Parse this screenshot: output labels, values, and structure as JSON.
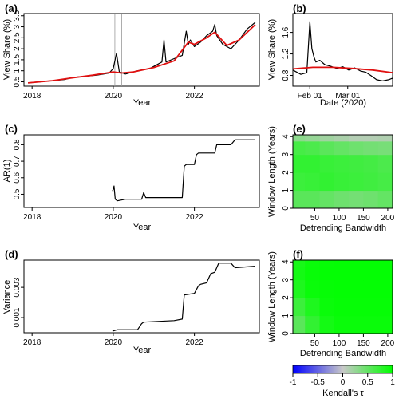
{
  "colors": {
    "data_line": "#000000",
    "trend_line": "#e01010",
    "heat_low": "#0000ff",
    "heat_mid": "#c8c8c8",
    "heat_high": "#00ff00"
  },
  "panels": {
    "a": {
      "label": "(a)",
      "ylabel": "View Share (%)",
      "xlabel": "Year",
      "xticks": [
        "2018",
        "2020",
        "2022"
      ],
      "yticks": [
        "0.5",
        "1",
        "1.5",
        "2",
        "2.5",
        "3",
        "3.5"
      ]
    },
    "b": {
      "label": "(b)",
      "ylabel": "View Share (%)",
      "xlabel": "Date (2020)",
      "xticks": [
        "Feb 01",
        "Mar 01"
      ],
      "yticks": [
        "0.8",
        "1.2",
        "1.6"
      ]
    },
    "c": {
      "label": "(c)",
      "ylabel": "AR(1)",
      "xlabel": "Year",
      "xticks": [
        "2018",
        "2020",
        "2022"
      ],
      "yticks": [
        "0.5",
        "0.6",
        "0.7",
        "0.8"
      ]
    },
    "d": {
      "label": "(d)",
      "ylabel": "Variance",
      "xlabel": "Year",
      "xticks": [
        "2018",
        "2020",
        "2022"
      ],
      "yticks": [
        "0.001",
        "0.003"
      ]
    },
    "e": {
      "label": "(e)",
      "ylabel": "Window Length (Years)",
      "xlabel": "Detrending Bandwidth",
      "xticks": [
        "50",
        "100",
        "150",
        "200"
      ],
      "yticks": [
        "0",
        "1",
        "2",
        "3",
        "4"
      ]
    },
    "f": {
      "label": "(f)",
      "ylabel": "Window Length (Years)",
      "xlabel": "Detrending Bandwidth",
      "xticks": [
        "50",
        "100",
        "150",
        "200"
      ],
      "yticks": [
        "0",
        "1",
        "2",
        "3",
        "4"
      ]
    }
  },
  "colorbar": {
    "label": "Kendall's τ",
    "ticks": [
      "-1",
      "-0.5",
      "0",
      "0.5",
      "1"
    ]
  },
  "chart_data": [
    {
      "panel": "a",
      "type": "line",
      "xlim": [
        2017.8,
        2023.6
      ],
      "ylim": [
        0.3,
        3.6
      ],
      "highlight_x": [
        2020.04,
        2020.21
      ],
      "series": [
        {
          "role": "data",
          "x": [
            2017.9,
            2018.2,
            2018.5,
            2018.8,
            2019.0,
            2019.3,
            2019.6,
            2019.9,
            2020.0,
            2020.08,
            2020.15,
            2020.3,
            2020.6,
            2020.9,
            2021.0,
            2021.2,
            2021.25,
            2021.3,
            2021.5,
            2021.7,
            2021.8,
            2021.85,
            2021.9,
            2022.0,
            2022.15,
            2022.3,
            2022.45,
            2022.5,
            2022.55,
            2022.7,
            2022.9,
            2023.1,
            2023.3,
            2023.5
          ],
          "y": [
            0.45,
            0.5,
            0.55,
            0.6,
            0.7,
            0.75,
            0.8,
            0.9,
            1.1,
            1.8,
            0.95,
            0.85,
            1.0,
            1.1,
            1.2,
            1.4,
            2.4,
            1.4,
            1.55,
            1.7,
            2.8,
            2.2,
            2.4,
            2.1,
            2.3,
            2.6,
            2.8,
            3.1,
            2.6,
            2.2,
            2.0,
            2.4,
            2.9,
            3.2
          ]
        },
        {
          "role": "trend",
          "x": [
            2017.9,
            2018.5,
            2019.0,
            2019.5,
            2020.0,
            2020.2,
            2020.5,
            2021.0,
            2021.5,
            2021.85,
            2022.0,
            2022.3,
            2022.5,
            2022.8,
            2023.1,
            2023.5
          ],
          "y": [
            0.45,
            0.55,
            0.68,
            0.8,
            0.95,
            0.9,
            0.95,
            1.15,
            1.45,
            2.3,
            2.2,
            2.5,
            2.75,
            2.15,
            2.4,
            3.1
          ]
        }
      ]
    },
    {
      "panel": "b",
      "type": "line",
      "xlim": [
        0,
        100
      ],
      "ylim": [
        0.6,
        1.95
      ],
      "series": [
        {
          "role": "data",
          "x": [
            0,
            8,
            14,
            17,
            19,
            21,
            23,
            27,
            32,
            38,
            44,
            50,
            56,
            62,
            68,
            73,
            78,
            84,
            90,
            96,
            100
          ],
          "y": [
            0.9,
            0.82,
            0.85,
            1.8,
            1.3,
            1.15,
            1.05,
            1.08,
            1.0,
            0.97,
            0.93,
            0.96,
            0.9,
            0.94,
            0.88,
            0.86,
            0.8,
            0.72,
            0.7,
            0.72,
            0.75
          ]
        },
        {
          "role": "trend",
          "x": [
            0,
            20,
            40,
            60,
            80,
            100
          ],
          "y": [
            0.92,
            0.95,
            0.95,
            0.93,
            0.9,
            0.85
          ]
        }
      ]
    },
    {
      "panel": "c",
      "type": "line",
      "xlim": [
        2017.8,
        2023.6
      ],
      "ylim": [
        0.42,
        0.86
      ],
      "series": [
        {
          "role": "ar1",
          "x": [
            2019.98,
            2020.0,
            2020.02,
            2020.05,
            2020.1,
            2020.3,
            2020.7,
            2020.75,
            2020.8,
            2021.0,
            2021.5,
            2021.7,
            2021.75,
            2021.8,
            2022.0,
            2022.05,
            2022.1,
            2022.5,
            2022.55,
            2022.9,
            2023.0,
            2023.5
          ],
          "y": [
            0.52,
            0.53,
            0.55,
            0.47,
            0.46,
            0.47,
            0.47,
            0.51,
            0.48,
            0.48,
            0.48,
            0.48,
            0.67,
            0.68,
            0.68,
            0.74,
            0.75,
            0.75,
            0.8,
            0.8,
            0.83,
            0.83
          ]
        }
      ]
    },
    {
      "panel": "d",
      "type": "line",
      "xlim": [
        2017.8,
        2023.6
      ],
      "ylim": [
        0.0,
        0.0048
      ],
      "series": [
        {
          "role": "variance",
          "x": [
            2019.98,
            2020.1,
            2020.6,
            2020.7,
            2020.75,
            2021.5,
            2021.7,
            2021.75,
            2022.0,
            2022.1,
            2022.15,
            2022.3,
            2022.4,
            2022.5,
            2022.6,
            2022.9,
            2023.0,
            2023.5
          ],
          "y": [
            0.0001,
            0.0002,
            0.0002,
            0.0006,
            0.0007,
            0.0008,
            0.0009,
            0.0025,
            0.0026,
            0.0031,
            0.0032,
            0.0033,
            0.0039,
            0.004,
            0.0046,
            0.0046,
            0.0043,
            0.0044
          ]
        }
      ]
    },
    {
      "panel": "e",
      "type": "heatmap",
      "xlim": [
        5,
        210
      ],
      "ylim": [
        0,
        4.1
      ],
      "x": [
        15,
        45,
        75,
        105,
        135,
        165,
        195
      ],
      "y": [
        0.5,
        1.5,
        2.5,
        3.5,
        4.0
      ],
      "z": [
        [
          0.55,
          0.55,
          0.5,
          0.45,
          0.42,
          0.45,
          0.5
        ],
        [
          0.7,
          0.72,
          0.75,
          0.72,
          0.7,
          0.68,
          0.65
        ],
        [
          0.75,
          0.75,
          0.72,
          0.7,
          0.68,
          0.66,
          0.62
        ],
        [
          0.65,
          0.62,
          0.55,
          0.5,
          0.45,
          0.42,
          0.4
        ],
        [
          0.3,
          0.25,
          0.2,
          0.15,
          0.1,
          0.1,
          0.12
        ]
      ]
    },
    {
      "panel": "f",
      "type": "heatmap",
      "xlim": [
        5,
        210
      ],
      "ylim": [
        0,
        4.1
      ],
      "x": [
        15,
        45,
        75,
        105,
        135,
        165,
        195
      ],
      "y": [
        0.5,
        1.5,
        2.5,
        3.5,
        4.0
      ],
      "z": [
        [
          0.55,
          0.75,
          0.9,
          0.95,
          0.95,
          0.95,
          0.95
        ],
        [
          0.7,
          0.85,
          0.95,
          0.97,
          0.97,
          0.97,
          0.97
        ],
        [
          0.85,
          0.95,
          0.97,
          0.98,
          0.98,
          0.98,
          0.98
        ],
        [
          0.9,
          0.96,
          0.98,
          0.98,
          0.98,
          0.98,
          0.98
        ],
        [
          0.88,
          0.95,
          0.97,
          0.98,
          0.98,
          0.98,
          0.98
        ]
      ]
    }
  ]
}
